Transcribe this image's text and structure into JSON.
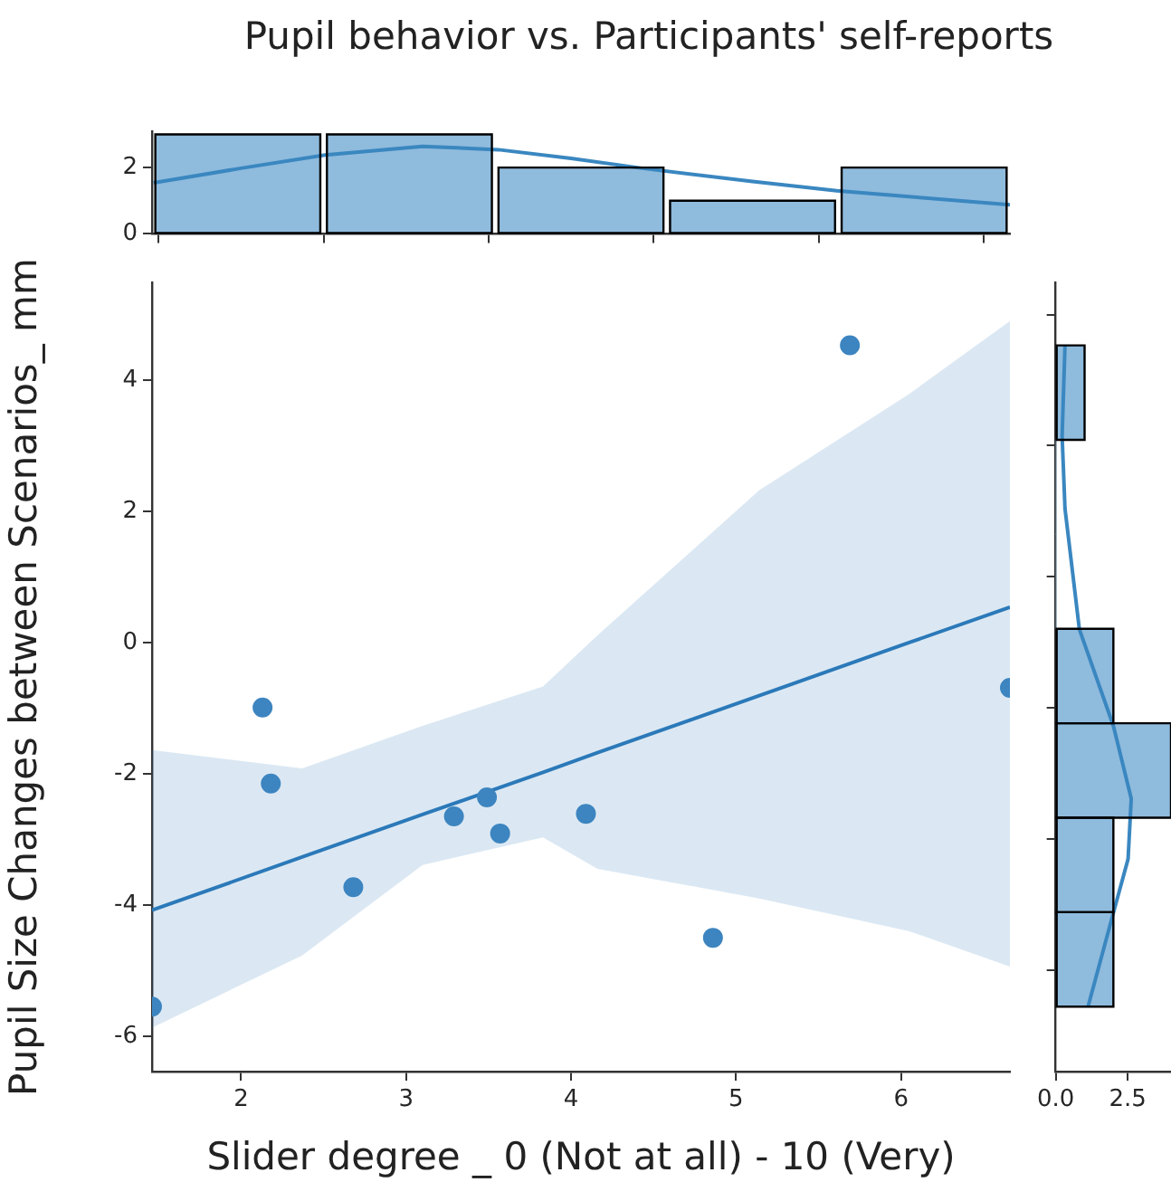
{
  "chart_data": [
    {
      "type": "histogram",
      "title": "Pupil behavior vs. Participants' self-reports",
      "bins": [
        1.46,
        2.5,
        3.54,
        4.58,
        5.62,
        6.66
      ],
      "xlim": [
        1.46,
        6.66
      ],
      "xticks": [
        {
          "value": 2,
          "label": null
        },
        {
          "value": 3,
          "label": null
        },
        {
          "value": 4,
          "label": null
        },
        {
          "value": 5,
          "label": null
        },
        {
          "value": 6,
          "label": null
        }
      ],
      "ylim": [
        0,
        3.08
      ],
      "yticks": [
        0,
        2
      ],
      "tick_labels": "y",
      "series": [
        {
          "color": "#8fbbdd",
          "values": [
            3,
            3,
            2,
            1,
            2
          ]
        },
        {
          "type": "line",
          "color": "#3a87c0",
          "x": [
            1.47,
            2.0,
            2.51,
            3.1,
            3.56,
            4.0,
            4.43,
            5.1,
            5.61,
            6.1,
            6.66
          ],
          "values": [
            1.54,
            1.98,
            2.38,
            2.64,
            2.54,
            2.28,
            1.98,
            1.58,
            1.3,
            1.1,
            0.88
          ]
        }
      ]
    },
    {
      "type": "scatter",
      "xlabel": "Slider degree _ 0 (Not at all) - 10 (Very)",
      "ylabel": "Pupil Size Changes between Scenarios_ mm",
      "xlim": [
        1.46,
        6.66
      ],
      "xticks": [
        2,
        3,
        4,
        5,
        6
      ],
      "ylim": [
        -6.54,
        5.49
      ],
      "yticks": [
        -6,
        -4,
        -2,
        0,
        2,
        4
      ],
      "series": [
        {
          "marker": "circle",
          "color": "#3d85c0",
          "x": [
            1.46,
            2.13,
            2.18,
            2.68,
            3.29,
            3.49,
            3.57,
            4.09,
            4.86,
            5.69,
            6.66
          ],
          "values": [
            -5.55,
            -0.99,
            -2.15,
            -3.73,
            -2.65,
            -2.36,
            -2.91,
            -2.61,
            -4.5,
            4.53,
            -0.69
          ]
        },
        {
          "type": "line",
          "color": "#2b79b9",
          "x": [
            1.46,
            2.37,
            3.1,
            3.83,
            4.16,
            5.14,
            6.05,
            6.66
          ],
          "values": [
            -4.08,
            -3.27,
            -2.62,
            -1.98,
            -1.68,
            -0.81,
            0.0,
            0.54
          ],
          "lower": [
            -5.87,
            -4.77,
            -3.39,
            -2.97,
            -3.45,
            -3.9,
            -4.4,
            -4.94
          ],
          "upper": [
            -1.64,
            -1.92,
            -1.27,
            -0.67,
            0.11,
            2.32,
            3.79,
            4.9
          ]
        }
      ]
    },
    {
      "type": "histogram",
      "orientation": "horizontal",
      "bins": [
        -5.55,
        -4.11,
        -2.67,
        -1.23,
        0.21,
        1.65,
        3.09,
        4.53
      ],
      "xlim": [
        0,
        4
      ],
      "xticks": [
        {
          "value": 0,
          "label": "0.0"
        },
        {
          "value": 2.5,
          "label": "2.5"
        }
      ],
      "ylim": [
        -6.54,
        5.49
      ],
      "yticks": [
        {
          "value": -6,
          "label": null
        },
        {
          "value": -4,
          "label": null
        },
        {
          "value": -2,
          "label": null
        },
        {
          "value": 0,
          "label": null
        },
        {
          "value": 2,
          "label": null
        },
        {
          "value": 4,
          "label": null
        }
      ],
      "tick_labels": "x",
      "series": [
        {
          "color": "#8fbbdd",
          "values": [
            2,
            2,
            4,
            2,
            0,
            0,
            1
          ]
        },
        {
          "type": "line",
          "color": "#3a87c0",
          "x": [
            -5.55,
            -4.12,
            -3.3,
            -2.38,
            -1.27,
            0.2,
            2.04,
            3.15,
            4.53
          ],
          "values": [
            1.12,
            2.0,
            2.51,
            2.62,
            2.0,
            0.82,
            0.32,
            0.22,
            0.32
          ]
        }
      ]
    }
  ]
}
